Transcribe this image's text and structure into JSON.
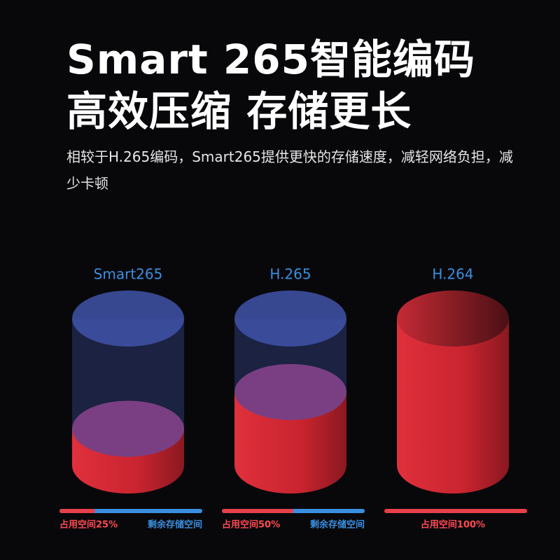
{
  "chart_data": {
    "type": "cylinder",
    "title": "Smart 265智能编码",
    "subtitle": "高效压缩 存储更长",
    "description": "相较于H.265编码，Smart265提供更快的存储速度，减轻网络负担，减少卡顿",
    "categories": [
      "Smart265",
      "H.265",
      "H.264"
    ],
    "values": [
      25,
      50,
      100
    ],
    "value_labels": [
      "占用空间25%",
      "占用空间50%",
      "占用空间100%"
    ],
    "remainder_label": "剩余存储空间",
    "ylim": [
      0,
      100
    ],
    "used_color": "#d9303a",
    "free_color": "#3f52a8",
    "label_color": "#3a8fe0"
  }
}
